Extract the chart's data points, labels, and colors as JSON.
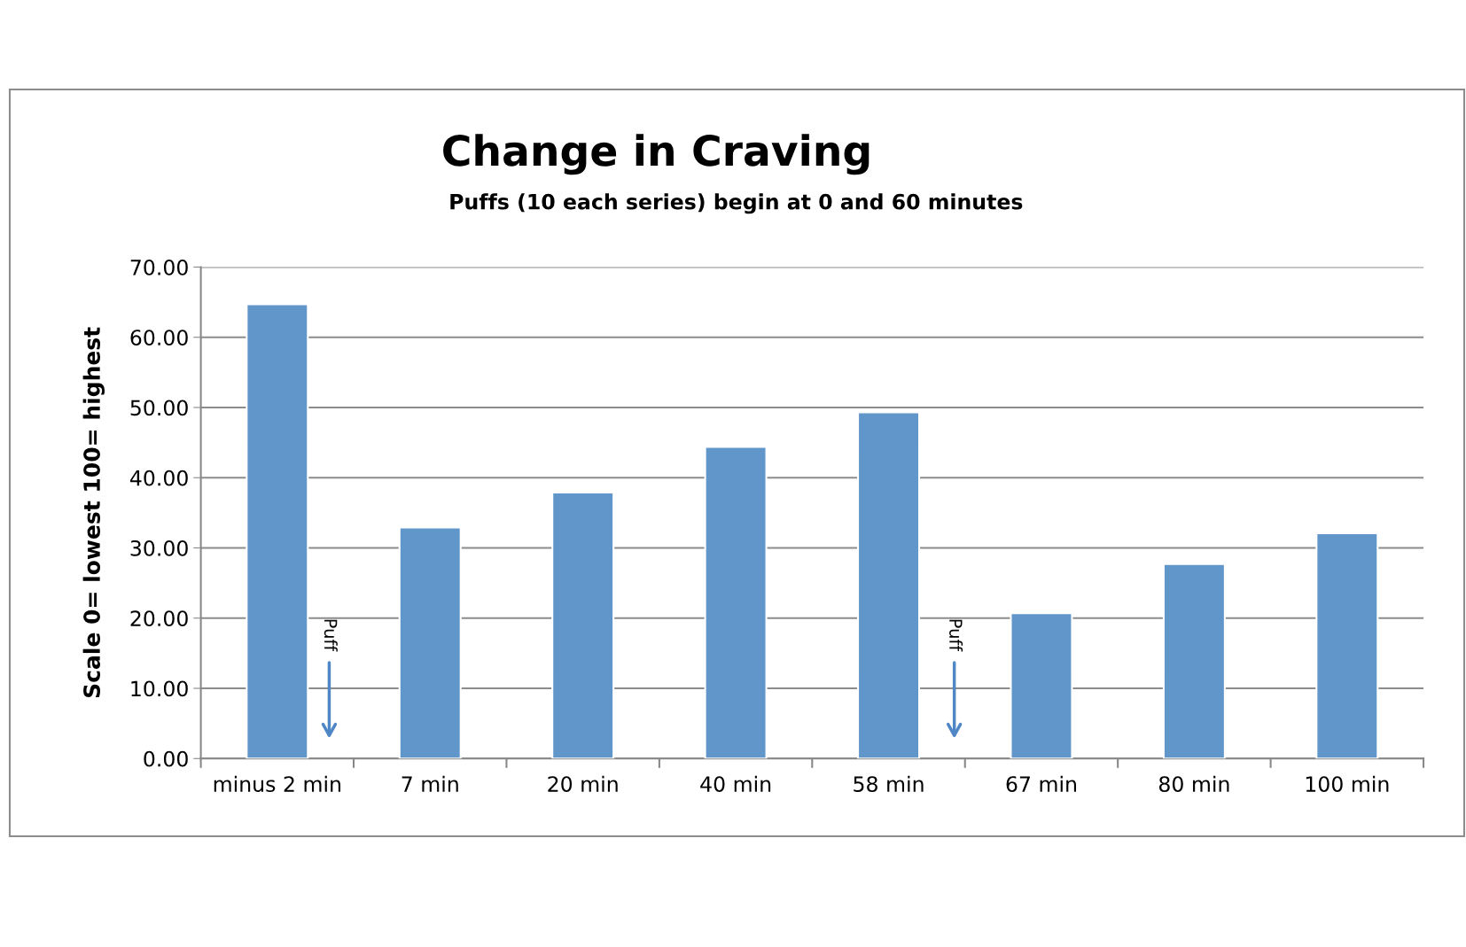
{
  "chart_data": {
    "type": "bar",
    "title": "Change in Craving",
    "subtitle": "Puffs (10 each series) begin at 0 and 60 minutes",
    "ylabel": "Scale 0= lowest 100= highest",
    "categories": [
      "minus 2 min",
      "7 min",
      "20 min",
      "40 min",
      "58 min",
      "67 min",
      "80 min",
      "100 min"
    ],
    "values": [
      64.7,
      32.9,
      37.9,
      44.4,
      49.3,
      20.7,
      27.7,
      32.1
    ],
    "color": "#6096c9",
    "ylim": [
      0,
      70
    ],
    "yticks": [
      {
        "value": 0,
        "label": "0.00"
      },
      {
        "value": 10,
        "label": "10.00"
      },
      {
        "value": 20,
        "label": "20.00"
      },
      {
        "value": 30,
        "label": "30.00"
      },
      {
        "value": 40,
        "label": "40.00"
      },
      {
        "value": 50,
        "label": "50.00"
      },
      {
        "value": 60,
        "label": "60.00"
      },
      {
        "value": 70,
        "label": "70.00"
      }
    ],
    "grid": "y",
    "annotations": [
      "Puff",
      "Puff"
    ]
  }
}
